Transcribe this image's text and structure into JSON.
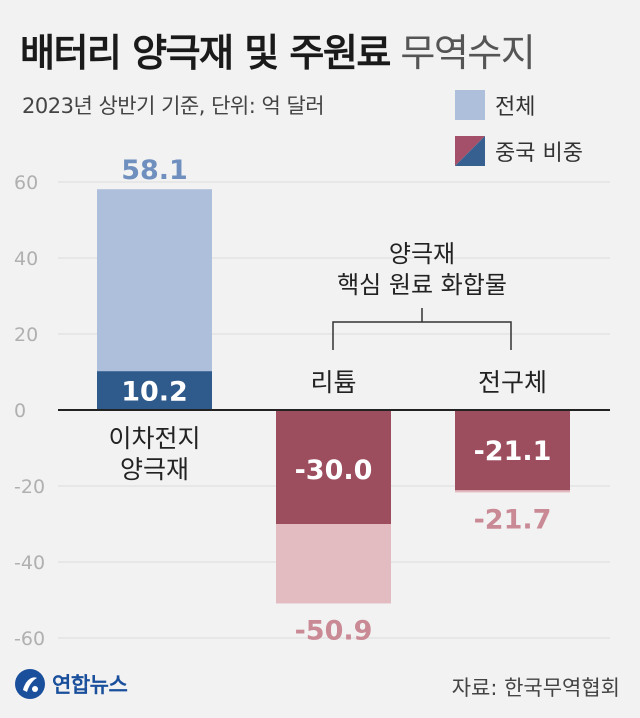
{
  "header": {
    "title_bold": "배터리 양극재 및 주원료",
    "title_light": "무역수지",
    "subtitle": "2023년 상반기 기준, 단위: 억 달러"
  },
  "legend": [
    {
      "label": "전체",
      "icon": "solid-swatch"
    },
    {
      "label": "중국 비중",
      "icon": "diagonal-split-swatch"
    }
  ],
  "colors": {
    "positive_total": "#aebfdc",
    "positive_china": "#2e5a8c",
    "negative_total": "#e3bcc2",
    "negative_china": "#9c4d5e",
    "positive_label": "#6f8fbe",
    "negative_label": "#c98a95",
    "legend_blue": "#35608f",
    "legend_red": "#a4506a"
  },
  "chart_data": {
    "type": "bar",
    "title": "배터리 양극재 및 주원료 무역수지",
    "ylabel": "억 달러",
    "ylim": [
      -60,
      60
    ],
    "yticks": [
      60,
      40,
      20,
      0,
      -20,
      -40,
      -60
    ],
    "grid": true,
    "categories": [
      "이차전지 양극재",
      "리튬",
      "전구체"
    ],
    "category_lines": [
      [
        "이차전지",
        "양극재"
      ],
      [
        "리튬"
      ],
      [
        "전구체"
      ]
    ],
    "series": [
      {
        "name": "전체",
        "values": [
          58.1,
          -50.9,
          -21.7
        ],
        "labels": [
          "58.1",
          "-50.9",
          "-21.7"
        ]
      },
      {
        "name": "중국 비중",
        "values": [
          10.2,
          -30.0,
          -21.1
        ],
        "labels": [
          "10.2",
          "-30.0",
          "-21.1"
        ]
      }
    ],
    "annotation": {
      "lines": [
        "양극재",
        "핵심 원료 화합물"
      ],
      "covers": [
        "리튬",
        "전구체"
      ]
    }
  },
  "footer": {
    "logo": "연합뉴스",
    "source": "자료: 한국무역협회"
  }
}
